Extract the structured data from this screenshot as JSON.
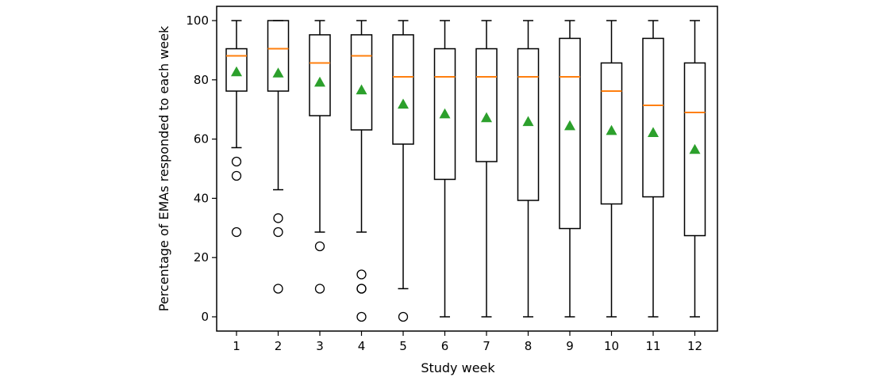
{
  "chart_data": {
    "type": "boxplot",
    "title": "",
    "xlabel": "Study week",
    "ylabel": "Percentage of EMAs responded to each week",
    "ylim": [
      0,
      100
    ],
    "yticks": [
      0,
      20,
      40,
      60,
      80,
      100
    ],
    "categories": [
      "1",
      "2",
      "3",
      "4",
      "5",
      "6",
      "7",
      "8",
      "9",
      "10",
      "11",
      "12"
    ],
    "grid": false,
    "colors": {
      "box": "#000000",
      "median": "#ff7f0e",
      "mean": "#2ca02c"
    },
    "boxes": [
      {
        "whisker_low": 57.1,
        "q1": 76.2,
        "median": 88.1,
        "q3": 90.5,
        "whisker_high": 100,
        "mean": 82.7,
        "outliers": [
          52.4,
          47.6,
          28.6
        ]
      },
      {
        "whisker_low": 42.9,
        "q1": 76.2,
        "median": 90.5,
        "q3": 100,
        "whisker_high": 100,
        "mean": 82.3,
        "outliers": [
          33.3,
          28.6,
          9.5
        ]
      },
      {
        "whisker_low": 28.6,
        "q1": 67.9,
        "median": 85.7,
        "q3": 95.2,
        "whisker_high": 100,
        "mean": 79.2,
        "outliers": [
          23.8,
          9.5
        ]
      },
      {
        "whisker_low": 28.6,
        "q1": 63.1,
        "median": 88.1,
        "q3": 95.2,
        "whisker_high": 100,
        "mean": 76.6,
        "outliers": [
          14.3,
          9.5,
          9.5,
          0
        ]
      },
      {
        "whisker_low": 9.5,
        "q1": 58.3,
        "median": 81.0,
        "q3": 95.2,
        "whisker_high": 100,
        "mean": 71.8,
        "outliers": [
          0
        ]
      },
      {
        "whisker_low": 0,
        "q1": 46.4,
        "median": 81.0,
        "q3": 90.5,
        "whisker_high": 100,
        "mean": 68.5,
        "outliers": []
      },
      {
        "whisker_low": 0,
        "q1": 52.4,
        "median": 81.0,
        "q3": 90.5,
        "whisker_high": 100,
        "mean": 67.2,
        "outliers": []
      },
      {
        "whisker_low": 0,
        "q1": 39.3,
        "median": 81.0,
        "q3": 90.5,
        "whisker_high": 100,
        "mean": 65.9,
        "outliers": []
      },
      {
        "whisker_low": 0,
        "q1": 29.8,
        "median": 81.0,
        "q3": 94.0,
        "whisker_high": 100,
        "mean": 64.5,
        "outliers": []
      },
      {
        "whisker_low": 0,
        "q1": 38.1,
        "median": 76.2,
        "q3": 85.7,
        "whisker_high": 100,
        "mean": 62.9,
        "outliers": []
      },
      {
        "whisker_low": 0,
        "q1": 40.5,
        "median": 71.4,
        "q3": 94.0,
        "whisker_high": 100,
        "mean": 62.2,
        "outliers": []
      },
      {
        "whisker_low": 0,
        "q1": 27.4,
        "median": 69.0,
        "q3": 85.7,
        "whisker_high": 100,
        "mean": 56.5,
        "outliers": []
      }
    ]
  }
}
